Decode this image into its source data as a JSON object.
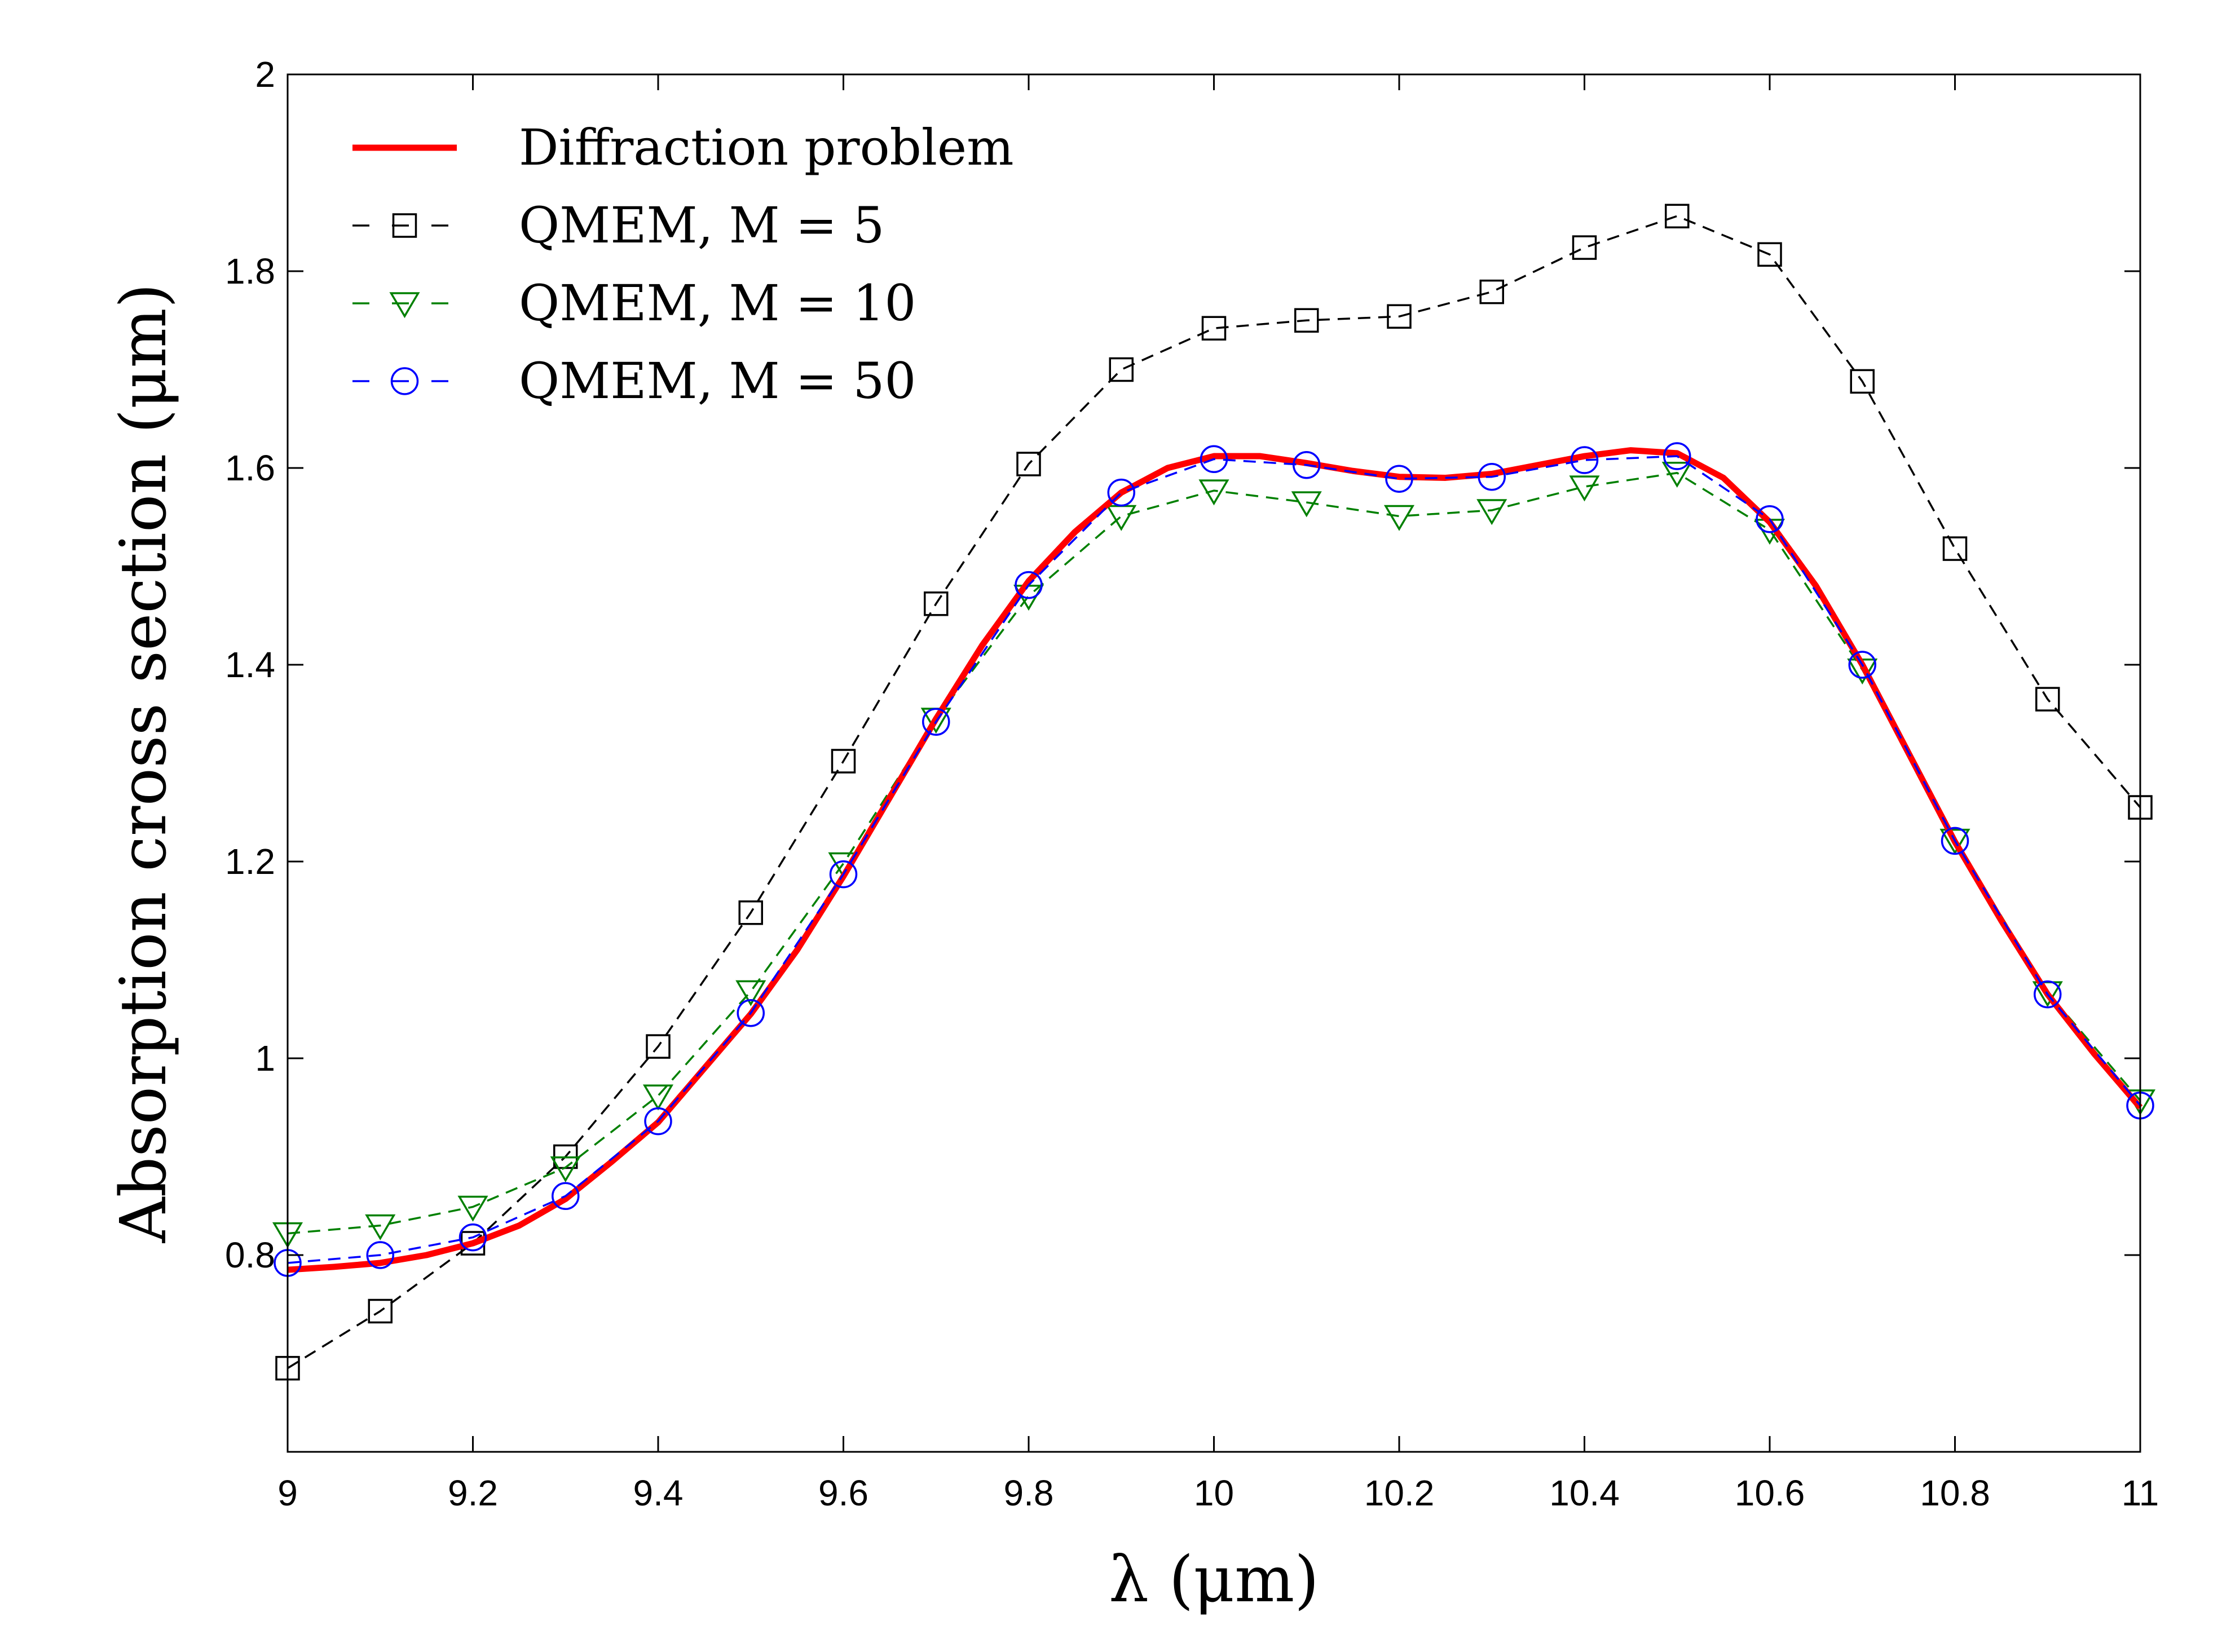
{
  "chart_data": {
    "type": "line",
    "xlabel": "λ (μm)",
    "ylabel": "Absorption cross section (μm)",
    "xlim": [
      9,
      11
    ],
    "ylim": [
      0.6,
      2
    ],
    "xticks": [
      9,
      9.2,
      9.4,
      9.6,
      9.8,
      10,
      10.2,
      10.4,
      10.6,
      10.8,
      11
    ],
    "xtick_labels": [
      "9",
      "9.2",
      "9.4",
      "9.6",
      "9.8",
      "10",
      "10.2",
      "10.4",
      "10.6",
      "10.8",
      "11"
    ],
    "yticks": [
      0.8,
      1,
      1.2,
      1.4,
      1.6,
      1.8,
      2
    ],
    "ytick_labels": [
      "0.8",
      "1",
      "1.2",
      "1.4",
      "1.6",
      "1.8",
      "2"
    ],
    "grid": false,
    "legend_position": "top-left",
    "series": [
      {
        "name": "Diffraction problem",
        "style": "solid",
        "marker": "none",
        "color": "#ff0000",
        "x": [
          9.0,
          9.05,
          9.1,
          9.15,
          9.2,
          9.25,
          9.3,
          9.35,
          9.4,
          9.45,
          9.5,
          9.55,
          9.6,
          9.65,
          9.7,
          9.75,
          9.8,
          9.85,
          9.9,
          9.95,
          10.0,
          10.05,
          10.1,
          10.15,
          10.2,
          10.25,
          10.3,
          10.35,
          10.4,
          10.45,
          10.5,
          10.55,
          10.6,
          10.65,
          10.7,
          10.75,
          10.8,
          10.85,
          10.9,
          10.95,
          11.0
        ],
        "y": [
          0.785,
          0.788,
          0.792,
          0.8,
          0.812,
          0.83,
          0.857,
          0.895,
          0.935,
          0.99,
          1.045,
          1.11,
          1.185,
          1.265,
          1.345,
          1.42,
          1.485,
          1.535,
          1.575,
          1.6,
          1.612,
          1.612,
          1.605,
          1.597,
          1.591,
          1.59,
          1.594,
          1.603,
          1.612,
          1.618,
          1.615,
          1.59,
          1.545,
          1.48,
          1.4,
          1.31,
          1.22,
          1.14,
          1.065,
          1.005,
          0.95
        ]
      },
      {
        "name": "QMEM, M = 5",
        "style": "dashed",
        "marker": "square",
        "color": "#000000",
        "x": [
          9.0,
          9.1,
          9.2,
          9.3,
          9.4,
          9.5,
          9.6,
          9.7,
          9.8,
          9.9,
          10.0,
          10.1,
          10.2,
          10.3,
          10.4,
          10.5,
          10.6,
          10.7,
          10.8,
          10.9,
          11.0
        ],
        "y": [
          0.685,
          0.743,
          0.812,
          0.9,
          1.012,
          1.148,
          1.302,
          1.462,
          1.604,
          1.7,
          1.742,
          1.75,
          1.754,
          1.779,
          1.824,
          1.856,
          1.817,
          1.688,
          1.518,
          1.365,
          1.255
        ]
      },
      {
        "name": "QMEM, M = 10",
        "style": "dashed",
        "marker": "triangle-down",
        "color": "#008000",
        "x": [
          9.0,
          9.1,
          9.2,
          9.3,
          9.4,
          9.5,
          9.6,
          9.7,
          9.8,
          9.9,
          10.0,
          10.1,
          10.2,
          10.3,
          10.4,
          10.5,
          10.6,
          10.7,
          10.8,
          10.9,
          11.0
        ],
        "y": [
          0.822,
          0.83,
          0.849,
          0.889,
          0.962,
          1.068,
          1.198,
          1.345,
          1.47,
          1.551,
          1.577,
          1.565,
          1.551,
          1.557,
          1.581,
          1.595,
          1.537,
          1.395,
          1.222,
          1.067,
          0.957
        ]
      },
      {
        "name": "QMEM, M = 50",
        "style": "dashed",
        "marker": "circle",
        "color": "#0000ff",
        "x": [
          9.0,
          9.1,
          9.2,
          9.3,
          9.4,
          9.5,
          9.6,
          9.7,
          9.8,
          9.9,
          10.0,
          10.1,
          10.2,
          10.3,
          10.4,
          10.5,
          10.6,
          10.7,
          10.8,
          10.9,
          11.0
        ],
        "y": [
          0.792,
          0.8,
          0.818,
          0.86,
          0.936,
          1.046,
          1.187,
          1.342,
          1.481,
          1.575,
          1.609,
          1.603,
          1.589,
          1.591,
          1.608,
          1.612,
          1.548,
          1.4,
          1.221,
          1.065,
          0.952
        ]
      }
    ]
  }
}
